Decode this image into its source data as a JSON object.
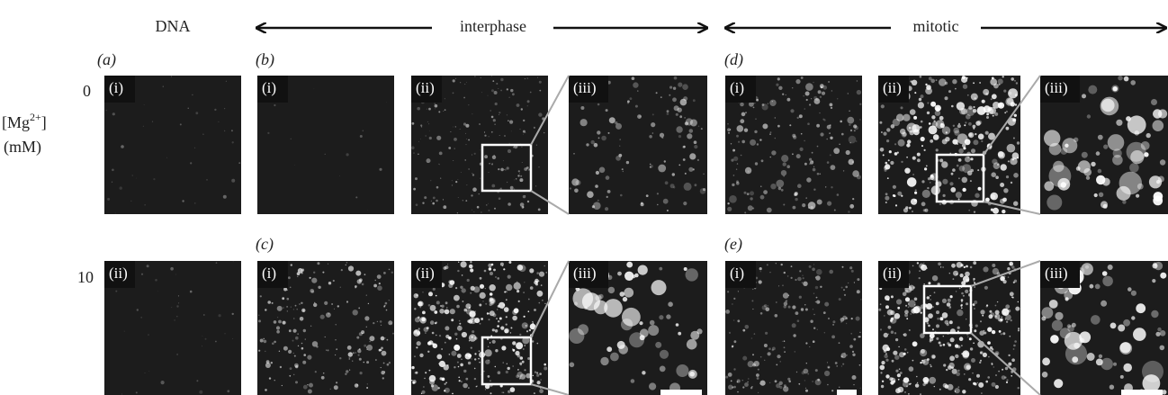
{
  "column_header": "DNA",
  "phases": [
    "interphase",
    "mitotic"
  ],
  "mg_label": {
    "prefix": "[Mg",
    "sup": "2+",
    "suffix": "]",
    "unit": "(mM)"
  },
  "concentrations": [
    "0",
    "10"
  ],
  "groups": [
    "(a)",
    "(b)",
    "(c)",
    "(d)",
    "(e)"
  ],
  "panels": [
    "(i)",
    "(i)",
    "(ii)",
    "(iii)",
    "(i)",
    "(ii)",
    "(iii)",
    "(ii)",
    "(i)",
    "(ii)",
    "(iii)",
    "(i)",
    "(ii)",
    "(iii)"
  ]
}
